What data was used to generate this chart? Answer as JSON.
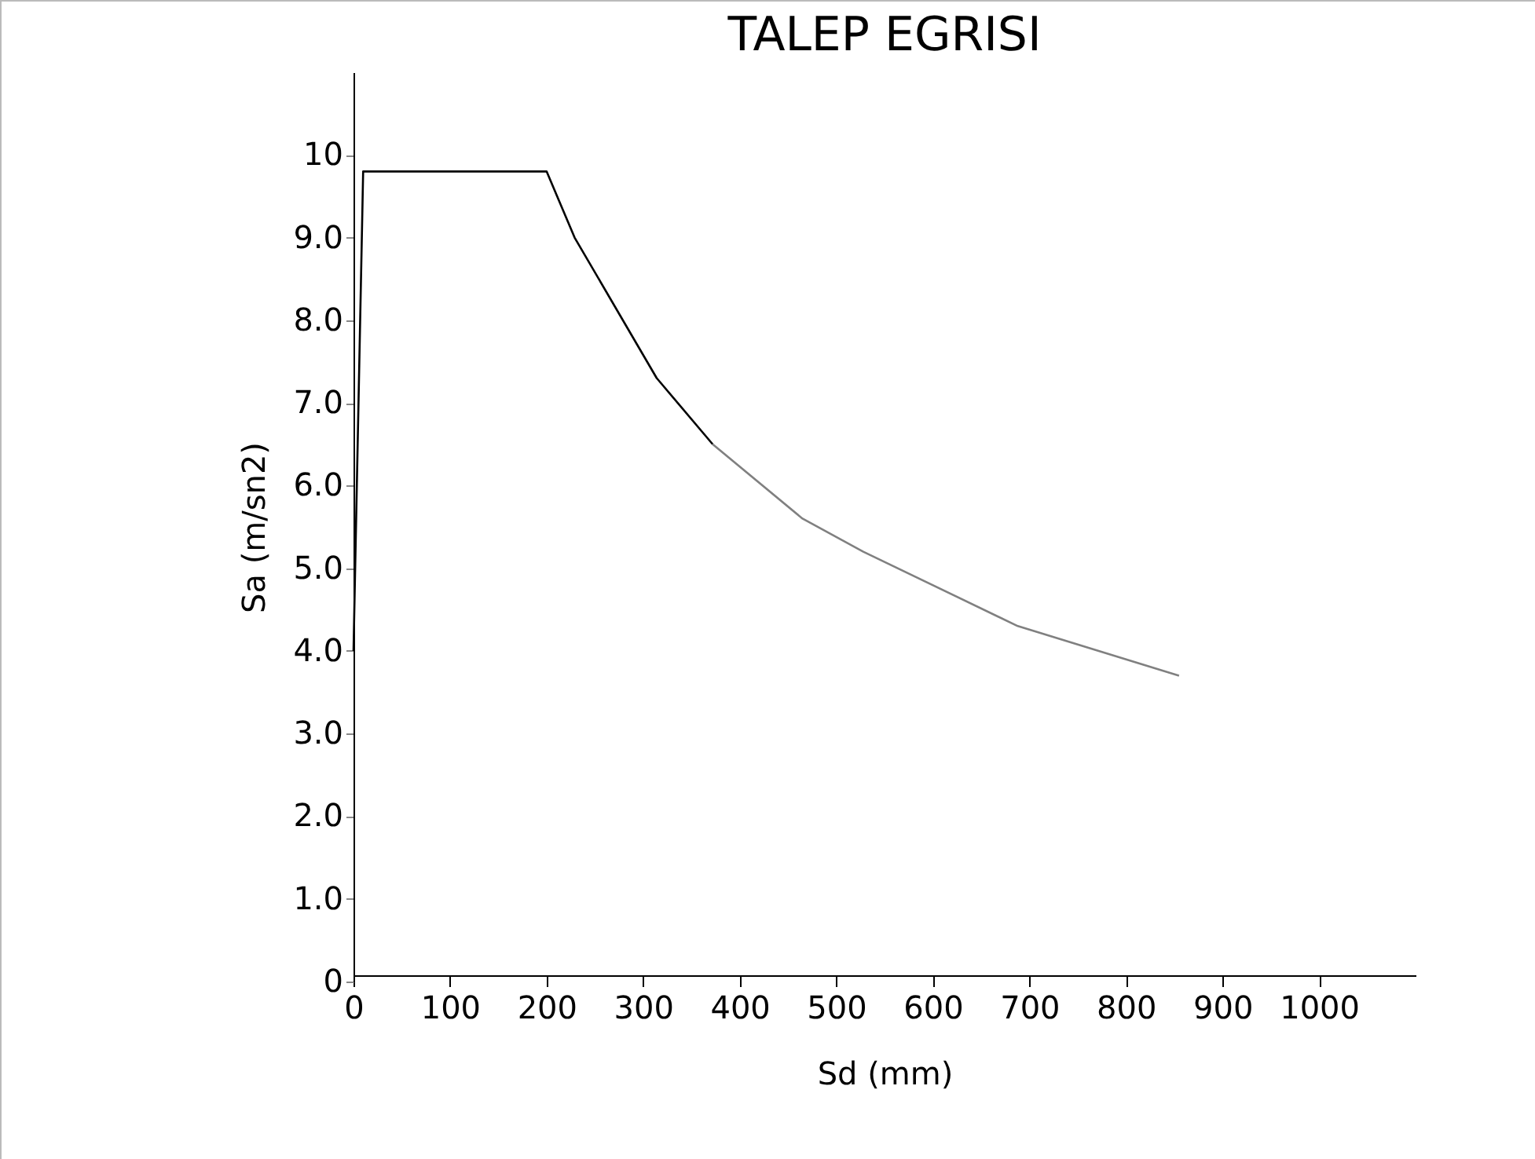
{
  "chart_data": {
    "type": "line",
    "title": "TALEP EGRISI",
    "xlabel": "Sd (mm)",
    "ylabel": "Sa (m/sn2)",
    "series": [
      {
        "color": "#000000",
        "x": [
          0,
          10,
          200,
          229,
          314,
          372
        ],
        "values": [
          4.0,
          9.8,
          9.8,
          9.0,
          7.3,
          6.5
        ]
      },
      {
        "color": "#808080",
        "x": [
          372,
          465,
          528,
          688,
          855
        ],
        "values": [
          6.5,
          5.6,
          5.2,
          4.3,
          3.7
        ]
      }
    ],
    "xlim": [
      0,
      1100
    ],
    "ylim": [
      0,
      11
    ],
    "xticks": [
      0,
      100,
      200,
      300,
      400,
      500,
      600,
      700,
      800,
      900,
      1000
    ],
    "yticks": [
      0,
      {
        "value": 1,
        "label": "1.0"
      },
      {
        "value": 2,
        "label": "2.0"
      },
      {
        "value": 3,
        "label": "3.0"
      },
      {
        "value": 4,
        "label": "4.0"
      },
      {
        "value": 5,
        "label": "5.0"
      },
      {
        "value": 6,
        "label": "6.0"
      },
      {
        "value": 7,
        "label": "7.0"
      },
      {
        "value": 8,
        "label": "8.0"
      },
      {
        "value": 9,
        "label": "9.0"
      },
      10
    ],
    "grid": false,
    "legend": false,
    "marker": "none",
    "line_style": "solid"
  }
}
